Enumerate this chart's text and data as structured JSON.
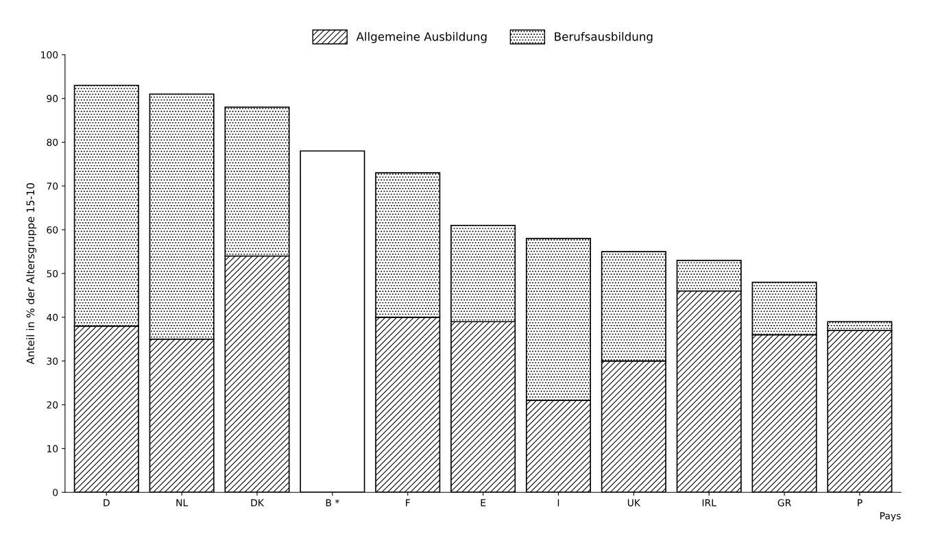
{
  "chart_data": {
    "type": "bar",
    "stacked": true,
    "categories": [
      "D",
      "NL",
      "DK",
      "B *",
      "F",
      "E",
      "I",
      "UK",
      "IRL",
      "GR",
      "P"
    ],
    "series": [
      {
        "name": "Allgemeine Ausbildung",
        "color": "#000000",
        "values": [
          38,
          35,
          54,
          null,
          40,
          39,
          21,
          30,
          46,
          36,
          37
        ]
      },
      {
        "name": "Berufsausbildung",
        "color": "#000000",
        "values": [
          55,
          56,
          34,
          null,
          33,
          22,
          37,
          25,
          7,
          12,
          2
        ]
      },
      {
        "color": "#ffffff",
        "values": [
          null,
          null,
          null,
          78,
          null,
          null,
          null,
          null,
          null,
          null,
          null
        ]
      }
    ],
    "ylabel": "Anteil in % der Altersgruppe 15-10",
    "xlabel": "Pays",
    "ylim": [
      0,
      100
    ],
    "yticks": [
      0,
      10,
      20,
      30,
      40,
      50,
      60,
      70,
      80,
      90,
      100
    ],
    "legend": "top",
    "grid": false
  }
}
